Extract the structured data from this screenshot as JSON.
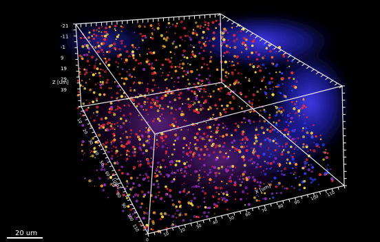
{
  "viewer": {
    "z_axis_label": "Z [um]",
    "y_axis_label": "Y [um]",
    "x_axis_label": "X [um]",
    "z_ticks": [
      "-21",
      "-11",
      "-1",
      "9",
      "19",
      "29",
      "39"
    ],
    "y_ticks": [
      "10",
      "20",
      "30",
      "40",
      "50",
      "60",
      "70",
      "80",
      "90",
      "100",
      "110"
    ],
    "x_ticks": [
      "10",
      "20",
      "30",
      "40",
      "50",
      "60",
      "70",
      "80",
      "90",
      "100",
      "110"
    ],
    "scale_bar_label": "20 um",
    "bottom_tick": "0",
    "colors": {
      "background": "#000000",
      "box_lines": "#ffffff",
      "cells_red": "#e8283a",
      "cells_yellow": "#ffe040",
      "cells_orange": "#ff9030",
      "nuclei_blue": "#3040ff",
      "purple": "#9030c0"
    }
  }
}
